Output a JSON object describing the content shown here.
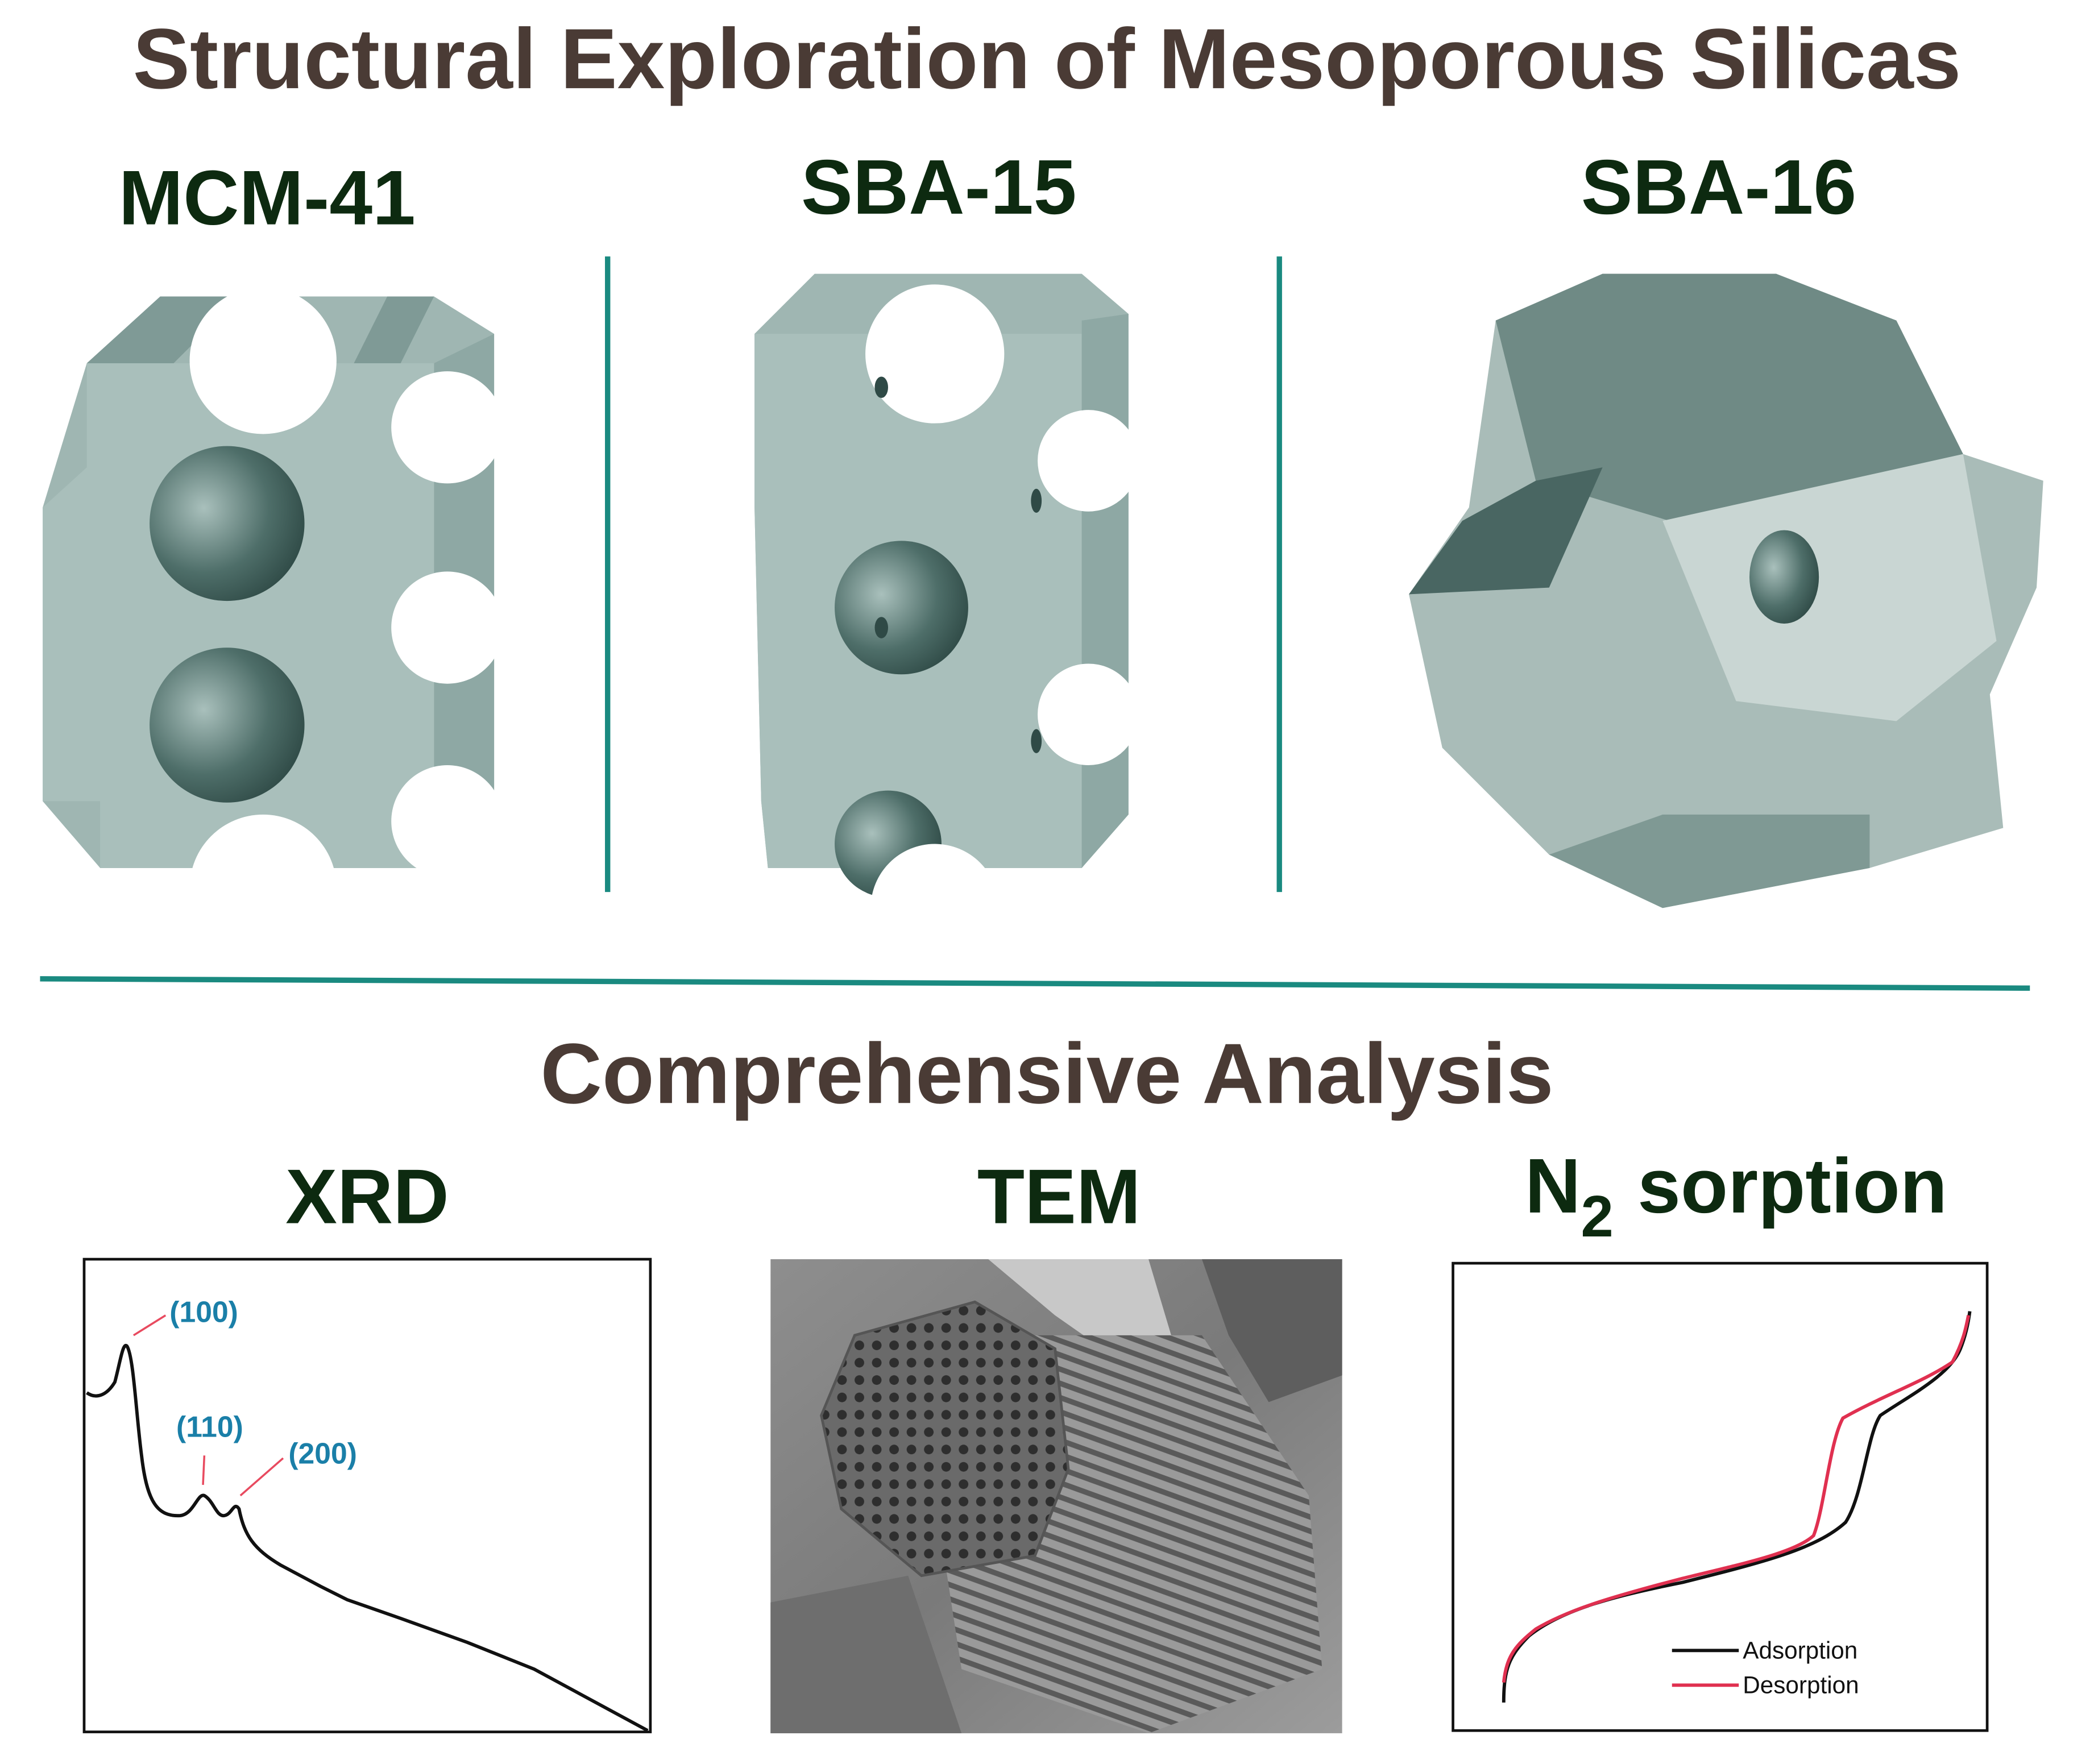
{
  "title": "Structural Exploration of Mesoporous Silicas",
  "structures": [
    {
      "label": "MCM-41"
    },
    {
      "label": "SBA-15"
    },
    {
      "label": "SBA-16"
    }
  ],
  "analysis": {
    "title": "Comprehensive Analysis",
    "xrd": {
      "label": "XRD",
      "peaks": [
        "(100)",
        "(110)",
        "(200)"
      ]
    },
    "tem": {
      "label": "TEM"
    },
    "sorption": {
      "label": "N",
      "subscript": "2",
      "suffix": "sorption",
      "legend": [
        "Adsorption",
        "Desorption"
      ]
    }
  }
}
